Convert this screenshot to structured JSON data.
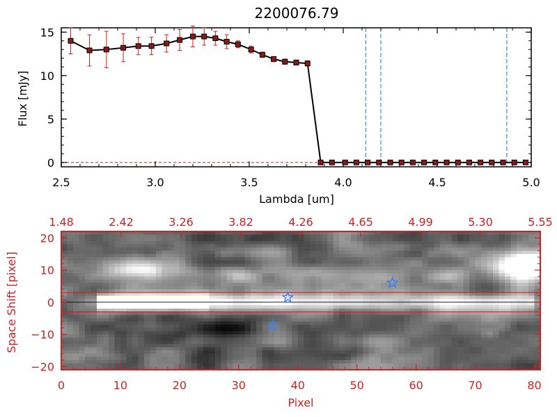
{
  "colors": {
    "axis_top": "#000000",
    "accent_red": "#cc2222",
    "cyan_line": "#3a8fd0",
    "star": "#3a7fff",
    "bg": "#ffffff"
  },
  "chart_data": [
    {
      "type": "line",
      "title": "2200076.79",
      "xlabel": "Lambda [um]",
      "ylabel": "Flux [mJy]",
      "xlim": [
        2.5,
        5.0
      ],
      "ylim": [
        -0.5,
        15.5
      ],
      "xticks": [
        2.5,
        3.0,
        3.5,
        4.0,
        4.5,
        5.0
      ],
      "xtick_labels": [
        "2.5",
        "3.0",
        "3.5",
        "4.0",
        "4.5",
        "5.0"
      ],
      "yticks": [
        0,
        5,
        10,
        15
      ],
      "ytick_labels": [
        "0",
        "5",
        "10",
        "15"
      ],
      "series": [
        {
          "x": [
            2.55,
            2.65,
            2.74,
            2.83,
            2.91,
            2.98,
            3.06,
            3.13,
            3.2,
            3.26,
            3.32,
            3.38,
            3.44,
            3.51,
            3.57,
            3.63,
            3.69,
            3.75,
            3.81,
            3.88,
            3.94,
            4.01,
            4.07,
            4.13,
            4.19,
            4.25,
            4.31,
            4.37,
            4.43,
            4.49,
            4.55,
            4.61,
            4.67,
            4.73,
            4.79,
            4.85,
            4.91,
            4.97
          ],
          "y": [
            14.0,
            12.9,
            13.0,
            13.2,
            13.4,
            13.4,
            13.7,
            14.1,
            14.5,
            14.5,
            14.3,
            13.9,
            13.6,
            13.0,
            12.4,
            11.9,
            11.6,
            11.5,
            11.4,
            0,
            0,
            0,
            0,
            0,
            0,
            0,
            0,
            0,
            0,
            0,
            0,
            0,
            0,
            0,
            0,
            0,
            0,
            0
          ],
          "yerr": [
            1.5,
            1.8,
            2.1,
            1.6,
            1.0,
            1.0,
            1.0,
            1.2,
            1.2,
            1.0,
            0.8,
            0.8,
            0.4,
            0.4,
            0.3,
            0.3,
            0.3,
            0.3,
            0.3,
            0,
            0,
            0,
            0,
            0,
            0,
            0,
            0,
            0,
            0,
            0,
            0,
            0,
            0,
            0,
            0,
            0,
            0,
            0
          ]
        }
      ],
      "vlines": [
        4.12,
        4.2,
        4.87
      ]
    },
    {
      "type": "heatmap",
      "xlabel": "Pixel",
      "ylabel": "Space Shift [pixel]",
      "xlim": [
        0,
        81
      ],
      "ylim": [
        -21,
        22
      ],
      "xticks": [
        0,
        10,
        20,
        30,
        40,
        50,
        60,
        70,
        80
      ],
      "xtick_labels": [
        "0",
        "10",
        "20",
        "30",
        "40",
        "50",
        "60",
        "70",
        "80"
      ],
      "yticks": [
        -20,
        -10,
        0,
        10,
        20
      ],
      "ytick_labels": [
        "−20",
        "−10",
        "0",
        "10",
        "20"
      ],
      "top_axis_labels": [
        "1.48",
        "2.42",
        "3.26",
        "3.82",
        "4.26",
        "4.65",
        "4.99",
        "5.30",
        "5.55"
      ],
      "hlines": [
        3,
        -3
      ],
      "stars": [
        {
          "x": 38.3,
          "y": 1.5
        },
        {
          "x": 56.0,
          "y": 6.0
        },
        {
          "x": 35.8,
          "y": -7.3
        }
      ]
    }
  ]
}
